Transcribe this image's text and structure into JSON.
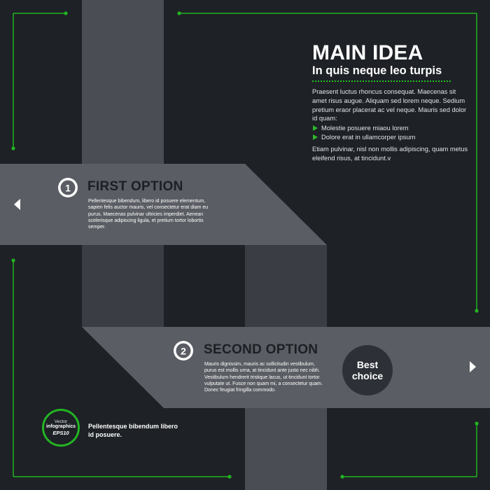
{
  "colors": {
    "background": "#1e2126",
    "accent_green": "#2db82d",
    "ribbon": "#5a5d63",
    "ribbon_dark": "#4a4d53",
    "option_title": "#1c1f24"
  },
  "main": {
    "title": "MAIN IDEA",
    "subtitle": "In quis neque leo turpis",
    "body": "Praesent luctus rhoncus consequat. Maecenas sit amet risus augue. Aliquam sed lorem neque. Sedium pretium eraor placerat ac vel neque. Mauris sed dolor id quam:",
    "bullets": [
      "Molestie posuere miaou lorem",
      "Dolore erat in ullamcorper ipsum"
    ],
    "footer": "Etiam pulvinar, nisl non mollis adipiscing, quam metus eleifend risus, at tincidunt.v"
  },
  "options": [
    {
      "number": "1",
      "title": "FIRST OPTION",
      "body": "Pellentesque bibendum, libero id posuere elementum, sapien felis auctor mauris, vel consectetur erat diam eu purus. Maecenas pulvinar ultricies imperdiet. Aenean scelerisque adipiscing ligula, et pretium tortor lobortis semper.",
      "arrow": "left-arrow-icon"
    },
    {
      "number": "2",
      "title": "SECOND OPTION",
      "body": "Mauris dignissim, mauris ac sollicitudin vestibulum, purus est mollis urna, at tincidunt ante justo nec nibh. Vestibulum hendrerit tristique lacus, ut tincidunt tortor vulputate ut. Fusce non quam mi, a consectetur quam. Donec feugiat fringilla commodo.",
      "arrow": "right-arrow-icon"
    }
  ],
  "best_choice": {
    "line1": "Best",
    "line2": "choice"
  },
  "badge": {
    "line1": "Vector",
    "line2": "infographics",
    "line3": "EPS10",
    "caption": "Pellentesque bibendum libero id posuere."
  }
}
